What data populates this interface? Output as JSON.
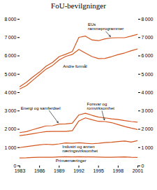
{
  "chart_data": {
    "type": "line",
    "title": "FoU-bevilgninger",
    "x": [
      1983,
      1984,
      1985,
      1986,
      1987,
      1988,
      1989,
      1990,
      1991,
      1992,
      1993,
      1994,
      1995,
      1996,
      1997,
      1998,
      1999,
      2000,
      2001
    ],
    "series": [
      {
        "color": "#D4561E",
        "values": [
          430,
          440,
          460,
          470,
          470,
          470,
          490,
          500,
          490,
          500,
          490,
          490,
          480,
          470,
          470,
          480,
          490,
          470,
          460
        ]
      },
      {
        "color": "#D4561E",
        "values": [
          1000,
          1050,
          1100,
          1150,
          1180,
          1160,
          1200,
          1250,
          1230,
          1260,
          1230,
          1210,
          1230,
          1270,
          1290,
          1330,
          1360,
          1300,
          1380
        ]
      },
      {
        "color": "#D4561E",
        "values": [
          1650,
          1700,
          1760,
          1820,
          1870,
          1880,
          1880,
          1880,
          1920,
          2450,
          2620,
          2520,
          2430,
          2420,
          2360,
          2250,
          2150,
          2060,
          1980
        ]
      },
      {
        "color": "#D4561E",
        "values": [
          1820,
          1870,
          1980,
          2080,
          2180,
          2190,
          2280,
          2290,
          2330,
          2780,
          2870,
          2760,
          2660,
          2620,
          2570,
          2530,
          2470,
          2420,
          2380
        ]
      },
      {
        "color": "#D4561E",
        "values": [
          4200,
          4380,
          4680,
          4980,
          5280,
          5480,
          5780,
          5970,
          6080,
          6350,
          6150,
          5960,
          5850,
          5860,
          5960,
          6070,
          6160,
          6280,
          6380
        ]
      },
      {
        "color": "#D4561E",
        "values": [
          4320,
          4560,
          4860,
          5120,
          5440,
          5650,
          5960,
          6090,
          6240,
          7010,
          7080,
          6870,
          6830,
          6930,
          6980,
          6990,
          6990,
          7080,
          7180
        ]
      }
    ],
    "xlim": [
      1983,
      2001
    ],
    "xticks": [
      1983,
      1986,
      1989,
      1992,
      1995,
      1998,
      2001
    ],
    "ylim": [
      0,
      8000
    ],
    "yticks": [
      0,
      {
        "value": 1000,
        "label": "1 000"
      },
      {
        "value": 2000,
        "label": "2 000"
      },
      {
        "value": 3000,
        "label": "3 000"
      },
      {
        "value": 4000,
        "label": "4 000"
      },
      {
        "value": 5000,
        "label": "5 000"
      },
      {
        "value": 6000,
        "label": "6 000"
      },
      {
        "value": 7000,
        "label": "7 000"
      },
      {
        "value": 8000,
        "label": "8 000"
      }
    ],
    "annotations": [
      {
        "text": "EUs\nrammeprogrammer",
        "x": 1997,
        "y": 6980
      },
      {
        "text": "Andre formål",
        "x": 1990,
        "y": 5970
      },
      {
        "text": "Energi og samferdsel",
        "x": 1989,
        "y": 2280
      },
      {
        "text": "Forsvar og\nromvirksomhet",
        "x": 1996,
        "y": 2420
      },
      {
        "text": "Industri og annen\nnæringsvirksomhet",
        "x": 1990,
        "y": 1250
      },
      {
        "text": "Primærnæringer",
        "x": 1989,
        "y": 490
      }
    ]
  }
}
